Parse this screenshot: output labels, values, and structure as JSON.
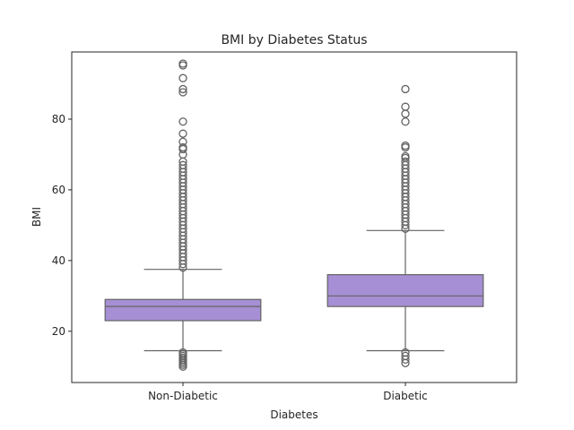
{
  "chart_data": {
    "type": "boxplot",
    "title": "BMI by Diabetes Status",
    "xlabel": "Diabetes",
    "ylabel": "BMI",
    "categories": [
      "Non-Diabetic",
      "Diabetic"
    ],
    "ylim": [
      5.5,
      99
    ],
    "yticks": [
      20,
      40,
      60,
      80
    ],
    "grid": false,
    "box_color": "#a68fd4",
    "line_color": "#636363",
    "boxes": [
      {
        "category": "Non-Diabetic",
        "whisker_low": 14.5,
        "q1": 23,
        "median": 27,
        "q3": 29,
        "whisker_high": 37.5,
        "outliers": [
          95.7,
          95.2,
          91.6,
          88.5,
          87.6,
          79.3,
          75.9,
          73.6,
          72.0,
          71.5,
          70.0,
          68.0,
          67.0,
          66.0,
          65.0,
          64.0,
          63.0,
          62.0,
          61.0,
          60.0,
          59.0,
          58.0,
          57.0,
          56.0,
          55.0,
          54.0,
          53.0,
          52.0,
          51.0,
          50.0,
          49.0,
          48.0,
          47.0,
          46.0,
          45.0,
          44.0,
          43.0,
          42.0,
          41.0,
          40.0,
          39.0,
          38.0,
          14.0,
          13.5,
          13.0,
          12.5,
          12.0,
          11.5,
          11.0,
          10.5,
          10.0
        ]
      },
      {
        "category": "Diabetic",
        "whisker_low": 14.5,
        "q1": 27,
        "median": 30,
        "q3": 36,
        "whisker_high": 48.5,
        "outliers": [
          88.5,
          83.5,
          81.5,
          79.3,
          72.5,
          72.0,
          69.5,
          69.0,
          68.0,
          67.0,
          66.0,
          65.0,
          64.0,
          63.0,
          62.0,
          61.0,
          60.0,
          59.0,
          58.0,
          57.0,
          56.0,
          55.0,
          54.0,
          53.0,
          52.0,
          51.0,
          50.0,
          49.0,
          14.0,
          13.0,
          12.0,
          11.0
        ]
      }
    ]
  }
}
